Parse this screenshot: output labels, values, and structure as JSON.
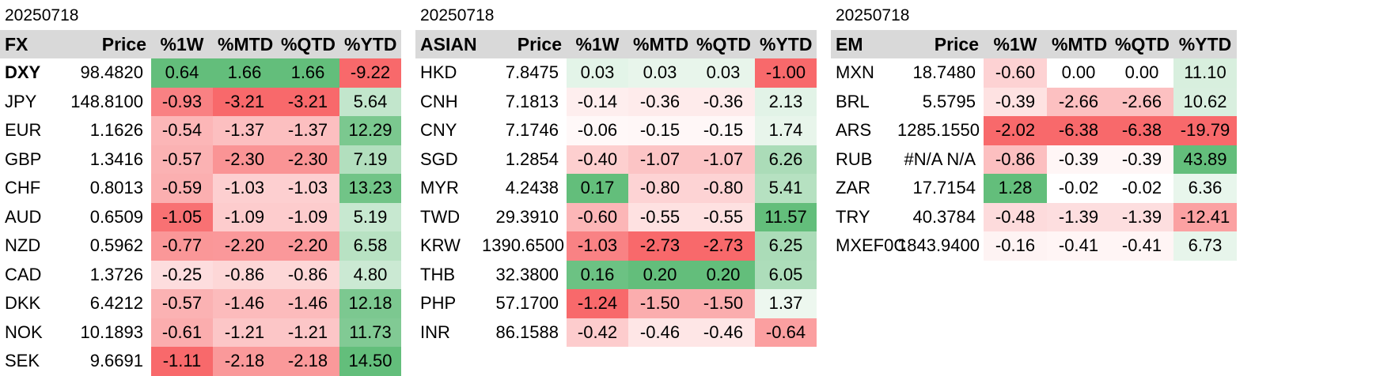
{
  "colors": {
    "neg_strong": "#f8696b",
    "pos_strong": "#63be7b",
    "neutral": "#ffffff",
    "header_bg": "#d9d9d9"
  },
  "panels": [
    {
      "date": "20250718",
      "headers": [
        "FX",
        "Price",
        "%1W",
        "%MTD",
        "%QTD",
        "%YTD"
      ],
      "rows": [
        {
          "name": "DXY",
          "price": "98.4820",
          "v": [
            "0.64",
            "1.66",
            "1.66",
            "-9.22"
          ]
        },
        {
          "name": "JPY",
          "price": "148.8100",
          "v": [
            "-0.93",
            "-3.21",
            "-3.21",
            "5.64"
          ]
        },
        {
          "name": "EUR",
          "price": "1.1626",
          "v": [
            "-0.54",
            "-1.37",
            "-1.37",
            "12.29"
          ]
        },
        {
          "name": "GBP",
          "price": "1.3416",
          "v": [
            "-0.57",
            "-2.30",
            "-2.30",
            "7.19"
          ]
        },
        {
          "name": "CHF",
          "price": "0.8013",
          "v": [
            "-0.59",
            "-1.03",
            "-1.03",
            "13.23"
          ]
        },
        {
          "name": "AUD",
          "price": "0.6509",
          "v": [
            "-1.05",
            "-1.09",
            "-1.09",
            "5.19"
          ]
        },
        {
          "name": "NZD",
          "price": "0.5962",
          "v": [
            "-0.77",
            "-2.20",
            "-2.20",
            "6.58"
          ]
        },
        {
          "name": "CAD",
          "price": "1.3726",
          "v": [
            "-0.25",
            "-0.86",
            "-0.86",
            "4.80"
          ]
        },
        {
          "name": "DKK",
          "price": "6.4212",
          "v": [
            "-0.57",
            "-1.46",
            "-1.46",
            "12.18"
          ]
        },
        {
          "name": "NOK",
          "price": "10.1893",
          "v": [
            "-0.61",
            "-1.21",
            "-1.21",
            "11.73"
          ]
        },
        {
          "name": "SEK",
          "price": "9.6691",
          "v": [
            "-1.11",
            "-2.18",
            "-2.18",
            "14.50"
          ]
        }
      ]
    },
    {
      "date": "20250718",
      "headers": [
        "ASIAN",
        "Price",
        "%1W",
        "%MTD",
        "%QTD",
        "%YTD"
      ],
      "rows": [
        {
          "name": "HKD",
          "price": "7.8475",
          "v": [
            "0.03",
            "0.03",
            "0.03",
            "-1.00"
          ]
        },
        {
          "name": "CNH",
          "price": "7.1813",
          "v": [
            "-0.14",
            "-0.36",
            "-0.36",
            "2.13"
          ]
        },
        {
          "name": "CNY",
          "price": "7.1746",
          "v": [
            "-0.06",
            "-0.15",
            "-0.15",
            "1.74"
          ]
        },
        {
          "name": "SGD",
          "price": "1.2854",
          "v": [
            "-0.40",
            "-1.07",
            "-1.07",
            "6.26"
          ]
        },
        {
          "name": "MYR",
          "price": "4.2438",
          "v": [
            "0.17",
            "-0.80",
            "-0.80",
            "5.41"
          ]
        },
        {
          "name": "TWD",
          "price": "29.3910",
          "v": [
            "-0.60",
            "-0.55",
            "-0.55",
            "11.57"
          ]
        },
        {
          "name": "KRW",
          "price": "1390.6500",
          "v": [
            "-1.03",
            "-2.73",
            "-2.73",
            "6.25"
          ]
        },
        {
          "name": "THB",
          "price": "32.3800",
          "v": [
            "0.16",
            "0.20",
            "0.20",
            "6.05"
          ]
        },
        {
          "name": "PHP",
          "price": "57.1700",
          "v": [
            "-1.24",
            "-1.50",
            "-1.50",
            "1.37"
          ]
        },
        {
          "name": "INR",
          "price": "86.1588",
          "v": [
            "-0.42",
            "-0.46",
            "-0.46",
            "-0.64"
          ]
        }
      ]
    },
    {
      "date": "20250718",
      "headers": [
        "EM",
        "Price",
        "%1W",
        "%MTD",
        "%QTD",
        "%YTD"
      ],
      "rows": [
        {
          "name": "MXN",
          "price": "18.7480",
          "v": [
            "-0.60",
            "0.00",
            "0.00",
            "11.10"
          ]
        },
        {
          "name": "BRL",
          "price": "5.5795",
          "v": [
            "-0.39",
            "-2.66",
            "-2.66",
            "10.62"
          ]
        },
        {
          "name": "ARS",
          "price": "1285.1550",
          "v": [
            "-2.02",
            "-6.38",
            "-6.38",
            "-19.79"
          ]
        },
        {
          "name": "RUB",
          "price": "#N/A N/A",
          "v": [
            "-0.86",
            "-0.39",
            "-0.39",
            "43.89"
          ]
        },
        {
          "name": "ZAR",
          "price": "17.7154",
          "v": [
            "1.28",
            "-0.02",
            "-0.02",
            "6.36"
          ]
        },
        {
          "name": "TRY",
          "price": "40.3784",
          "v": [
            "-0.48",
            "-1.39",
            "-1.39",
            "-12.41"
          ]
        },
        {
          "name": "MXEF0C",
          "price": "1843.9400",
          "v": [
            "-0.16",
            "-0.41",
            "-0.41",
            "6.73"
          ]
        }
      ]
    }
  ]
}
